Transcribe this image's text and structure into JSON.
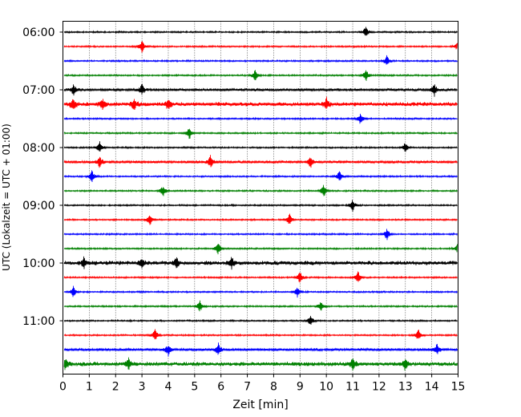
{
  "chart_data": {
    "type": "line",
    "subtype": "helicorder",
    "title": "",
    "xlabel": "Zeit  [min]",
    "ylabel": "UTC (Lokalzeit = UTC + 01:00)",
    "xlim": [
      0,
      15
    ],
    "x_ticks": [
      "0",
      "1",
      "2",
      "3",
      "4",
      "5",
      "6",
      "7",
      "8",
      "9",
      "10",
      "11",
      "12",
      "13",
      "14",
      "15"
    ],
    "y_tick_labels": [
      "06:00",
      "07:00",
      "08:00",
      "09:00",
      "10:00",
      "11:00"
    ],
    "x_grid": "dotted vertical lines at each minute",
    "trace_interval_minutes": 15,
    "start_time": "06:00",
    "trace_colors": [
      "#000000",
      "#ff0000",
      "#0000ff",
      "#008000"
    ],
    "traces": [
      {
        "start": "06:00",
        "color": "#000000",
        "activity": "low",
        "spikes_min": [
          11.5
        ]
      },
      {
        "start": "06:15",
        "color": "#ff0000",
        "activity": "low",
        "spikes_min": [
          3.0,
          15.0
        ]
      },
      {
        "start": "06:30",
        "color": "#0000ff",
        "activity": "low",
        "spikes_min": [
          12.3
        ]
      },
      {
        "start": "06:45",
        "color": "#008000",
        "activity": "low",
        "spikes_min": [
          7.3,
          11.5
        ]
      },
      {
        "start": "07:00",
        "color": "#000000",
        "activity": "medium",
        "spikes_min": [
          0.4,
          3.0,
          14.1
        ]
      },
      {
        "start": "07:15",
        "color": "#ff0000",
        "activity": "high",
        "spikes_min": [
          0.4,
          1.5,
          2.7,
          4.0,
          10.0
        ]
      },
      {
        "start": "07:30",
        "color": "#0000ff",
        "activity": "low",
        "spikes_min": [
          11.3
        ]
      },
      {
        "start": "07:45",
        "color": "#008000",
        "activity": "low",
        "spikes_min": [
          4.8
        ]
      },
      {
        "start": "08:00",
        "color": "#000000",
        "activity": "low",
        "spikes_min": [
          1.4,
          13.0
        ]
      },
      {
        "start": "08:15",
        "color": "#ff0000",
        "activity": "medium",
        "spikes_min": [
          1.4,
          5.6,
          9.4
        ]
      },
      {
        "start": "08:30",
        "color": "#0000ff",
        "activity": "low",
        "spikes_min": [
          1.1,
          10.5
        ]
      },
      {
        "start": "08:45",
        "color": "#008000",
        "activity": "low",
        "spikes_min": [
          3.8,
          9.9
        ]
      },
      {
        "start": "09:00",
        "color": "#000000",
        "activity": "low",
        "spikes_min": [
          11.0
        ]
      },
      {
        "start": "09:15",
        "color": "#ff0000",
        "activity": "low",
        "spikes_min": [
          3.3,
          8.6
        ]
      },
      {
        "start": "09:30",
        "color": "#0000ff",
        "activity": "low",
        "spikes_min": [
          12.3
        ]
      },
      {
        "start": "09:45",
        "color": "#008000",
        "activity": "low",
        "spikes_min": [
          5.9,
          15.0
        ]
      },
      {
        "start": "10:00",
        "color": "#000000",
        "activity": "high",
        "spikes_min": [
          0.8,
          3.0,
          4.3,
          6.4
        ]
      },
      {
        "start": "10:15",
        "color": "#ff0000",
        "activity": "low",
        "spikes_min": [
          9.0,
          11.2
        ]
      },
      {
        "start": "10:30",
        "color": "#0000ff",
        "activity": "low",
        "spikes_min": [
          0.4,
          8.9
        ]
      },
      {
        "start": "10:45",
        "color": "#008000",
        "activity": "low",
        "spikes_min": [
          5.2,
          9.8
        ]
      },
      {
        "start": "11:00",
        "color": "#000000",
        "activity": "low",
        "spikes_min": [
          9.4
        ]
      },
      {
        "start": "11:15",
        "color": "#ff0000",
        "activity": "low",
        "spikes_min": [
          3.5,
          13.5
        ]
      },
      {
        "start": "11:30",
        "color": "#0000ff",
        "activity": "medium",
        "spikes_min": [
          4.0,
          5.9,
          14.2
        ]
      },
      {
        "start": "11:45",
        "color": "#008000",
        "activity": "high",
        "spikes_min": [
          0.1,
          2.5,
          11.0,
          13.0
        ]
      }
    ]
  }
}
